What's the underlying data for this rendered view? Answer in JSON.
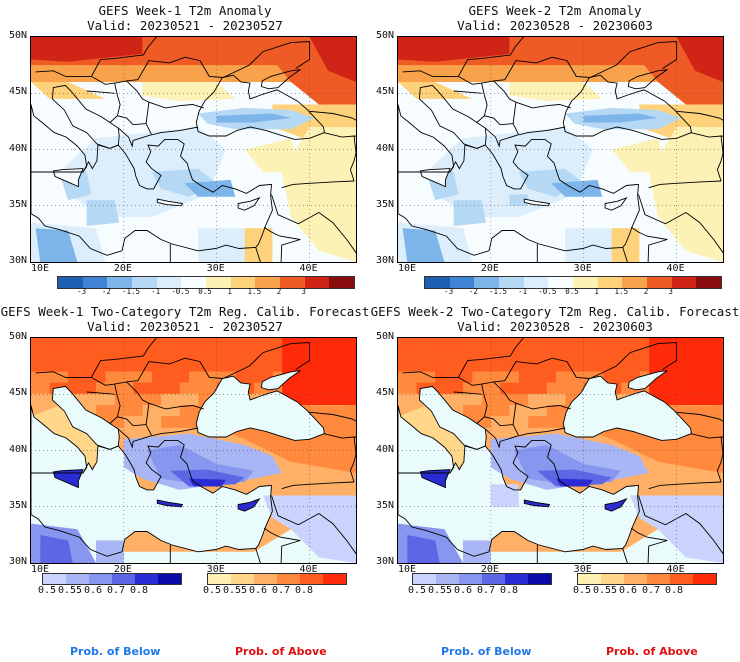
{
  "panels": [
    {
      "id": "p1",
      "type": "anomaly",
      "title_line1": "GEFS Week-1 T2m Anomaly",
      "title_line2": "Valid: 20230521 - 20230527"
    },
    {
      "id": "p2",
      "type": "anomaly",
      "title_line1": "GEFS Week-2 T2m Anomaly",
      "title_line2": "Valid: 20230528 - 20230603"
    },
    {
      "id": "p3",
      "type": "prob",
      "title_line1": "GEFS Week-1 Two-Category T2m Reg. Calib. Forecast",
      "title_line2": "Valid: 20230521 - 20230527"
    },
    {
      "id": "p4",
      "type": "prob",
      "title_line1": "GEFS Week-2 Two-Category T2m Reg. Calib. Forecast",
      "title_line2": "Valid: 20230528 - 20230603"
    }
  ],
  "axes": {
    "y_ticks": [
      "50N",
      "45N",
      "40N",
      "35N",
      "30N"
    ],
    "x_ticks": [
      "10E",
      "20E",
      "30E",
      "40E"
    ]
  },
  "anomaly_colorbar": {
    "labels": [
      "-3",
      "-2",
      "-1.5",
      "-1",
      "-0.5",
      "0.5",
      "1",
      "1.5",
      "2",
      "3"
    ],
    "colors": [
      "#1f5fb4",
      "#3f84d4",
      "#7db4ea",
      "#b5d8f5",
      "#dcedfb",
      "#f7fcff",
      "#fdf2b6",
      "#fdd27a",
      "#f8a24c",
      "#ee5b24",
      "#cf2416",
      "#8a0d0d"
    ]
  },
  "prob_colorbar": {
    "below_labels": [
      "0.5",
      "0.55",
      "0.6",
      "0.7",
      "0.8"
    ],
    "below_colors": [
      "#c9d3fb",
      "#a9b6f5",
      "#8796ee",
      "#5d67e6",
      "#2b2bd6",
      "#0a0aaa"
    ],
    "above_labels": [
      "0.5",
      "0.55",
      "0.6",
      "0.7",
      "0.8"
    ],
    "above_colors": [
      "#fff0b3",
      "#ffd68a",
      "#ffb066",
      "#ff8a3d",
      "#ff5c1f",
      "#ff2a0a"
    ]
  },
  "legend": {
    "below": "Prob. of Below",
    "above": "Prob. of Above",
    "below_color": "#1f78e6",
    "above_color": "#e01010"
  }
}
